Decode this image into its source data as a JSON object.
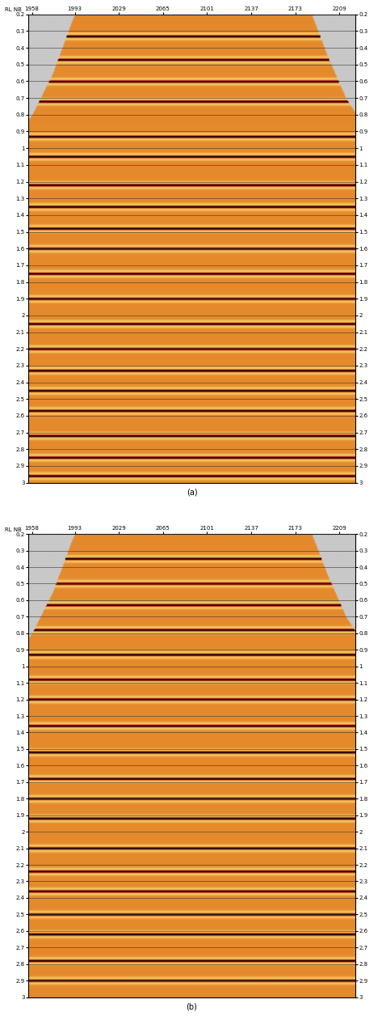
{
  "chart_data": [
    {
      "type": "image",
      "label": "(a)",
      "x_title": "RL NB",
      "xlim": [
        1955,
        2222
      ],
      "xticks": [
        1958,
        1993,
        2029,
        2065,
        2101,
        2137,
        2173,
        2209
      ],
      "ylim": [
        3,
        0.2
      ],
      "yticks": [
        0.2,
        0.3,
        0.4,
        0.5,
        0.6,
        0.7,
        0.8,
        0.9,
        1,
        1.1,
        1.2,
        1.3,
        1.4,
        1.5,
        1.6,
        1.7,
        1.8,
        1.9,
        2,
        2.1,
        2.2,
        2.3,
        2.4,
        2.5,
        2.6,
        2.7,
        2.8,
        2.9,
        3
      ],
      "grid": true,
      "mute": {
        "x": [
          1955,
          1958,
          1975,
          1990,
          1993,
          2187,
          2200,
          2215,
          2222
        ],
        "t": [
          0.83,
          0.8,
          0.55,
          0.25,
          0.2,
          0.2,
          0.45,
          0.7,
          0.78
        ]
      },
      "reflectors": [
        0.33,
        0.47,
        0.6,
        0.72,
        0.93,
        1.05,
        1.22,
        1.35,
        1.48,
        1.6,
        1.75,
        1.9,
        2.05,
        2.2,
        2.33,
        2.45,
        2.57,
        2.72,
        2.85,
        2.96
      ]
    },
    {
      "type": "image",
      "label": "(b)",
      "x_title": "RL NB",
      "xlim": [
        1955,
        2222
      ],
      "xticks": [
        1958,
        1993,
        2029,
        2065,
        2101,
        2137,
        2173,
        2209
      ],
      "ylim": [
        3,
        0.2
      ],
      "yticks": [
        0.2,
        0.3,
        0.4,
        0.5,
        0.6,
        0.7,
        0.8,
        0.9,
        1,
        1.1,
        1.2,
        1.3,
        1.4,
        1.5,
        1.6,
        1.7,
        1.8,
        1.9,
        2,
        2.1,
        2.2,
        2.3,
        2.4,
        2.5,
        2.6,
        2.7,
        2.8,
        2.9,
        3
      ],
      "grid": true,
      "mute": {
        "x": [
          1955,
          1958,
          1975,
          1990,
          1993,
          2187,
          2200,
          2215,
          2222
        ],
        "t": [
          0.83,
          0.8,
          0.55,
          0.25,
          0.2,
          0.2,
          0.45,
          0.7,
          0.78
        ]
      },
      "reflectors": [
        0.35,
        0.5,
        0.63,
        0.78,
        0.93,
        1.08,
        1.2,
        1.36,
        1.52,
        1.68,
        1.8,
        1.92,
        2.1,
        2.24,
        2.36,
        2.5,
        2.62,
        2.78,
        2.9
      ]
    }
  ]
}
